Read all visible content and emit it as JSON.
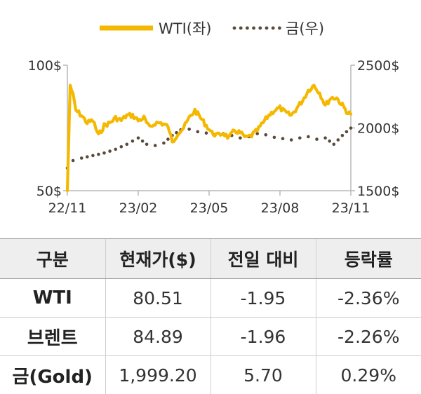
{
  "chart_data": {
    "type": "line",
    "legend_position": "top",
    "x_ticks": [
      "22/11",
      "23/02",
      "23/05",
      "23/08",
      "23/11"
    ],
    "y_left": {
      "ticks": [
        "100$",
        "50$"
      ],
      "range": [
        50,
        100
      ]
    },
    "y_right": {
      "ticks": [
        "2500$",
        "2000$",
        "1500$"
      ],
      "range": [
        1500,
        2500
      ]
    },
    "series": [
      {
        "name": "WTI(좌)",
        "axis": "left",
        "style": "solid",
        "color": "#f5b800",
        "t": [
          0,
          0.01,
          0.02,
          0.03,
          0.05,
          0.07,
          0.09,
          0.11,
          0.13,
          0.15,
          0.17,
          0.19,
          0.21,
          0.23,
          0.25,
          0.27,
          0.29,
          0.31,
          0.33,
          0.35,
          0.36,
          0.37,
          0.39,
          0.41,
          0.43,
          0.45,
          0.47,
          0.49,
          0.51,
          0.53,
          0.55,
          0.57,
          0.59,
          0.61,
          0.63,
          0.65,
          0.67,
          0.69,
          0.71,
          0.73,
          0.75,
          0.77,
          0.79,
          0.81,
          0.83,
          0.85,
          0.87,
          0.89,
          0.91,
          0.93,
          0.95,
          0.97,
          0.99,
          1.0
        ],
        "values": [
          50,
          92,
          88,
          82,
          80,
          77,
          78,
          72,
          76,
          77,
          79,
          78,
          80,
          80,
          78,
          79,
          75,
          77,
          77,
          76,
          74,
          69,
          73,
          75,
          79,
          82,
          79,
          76,
          73,
          72,
          73,
          71,
          74,
          73,
          71,
          72,
          74,
          77,
          80,
          82,
          83,
          81,
          80,
          83,
          86,
          90,
          92,
          89,
          84,
          87,
          87,
          84,
          81,
          80.51
        ]
      },
      {
        "name": "금(우)",
        "axis": "right",
        "style": "dotted",
        "color": "#5a4a3a",
        "t": [
          0,
          0.02,
          0.05,
          0.09,
          0.13,
          0.17,
          0.21,
          0.25,
          0.28,
          0.31,
          0.34,
          0.37,
          0.4,
          0.43,
          0.46,
          0.49,
          0.52,
          0.55,
          0.58,
          0.61,
          0.64,
          0.67,
          0.7,
          0.73,
          0.76,
          0.79,
          0.82,
          0.85,
          0.88,
          0.91,
          0.94,
          0.97,
          1.0
        ],
        "values": [
          1680,
          1740,
          1760,
          1780,
          1800,
          1830,
          1870,
          1920,
          1870,
          1860,
          1880,
          1940,
          1985,
          1990,
          1970,
          1960,
          1945,
          1955,
          1940,
          1920,
          1930,
          1955,
          1945,
          1925,
          1915,
          1905,
          1920,
          1930,
          1910,
          1920,
          1870,
          1940,
          1999.2
        ]
      }
    ]
  },
  "table": {
    "headers": [
      "구분",
      "현재가($)",
      "전일 대비",
      "등락률"
    ],
    "rows": [
      [
        "WTI",
        "80.51",
        "-1.95",
        "-2.36%"
      ],
      [
        "브렌트",
        "84.89",
        "-1.96",
        "-2.26%"
      ],
      [
        "금(Gold)",
        "1,999.20",
        "5.70",
        "0.29%"
      ]
    ]
  }
}
